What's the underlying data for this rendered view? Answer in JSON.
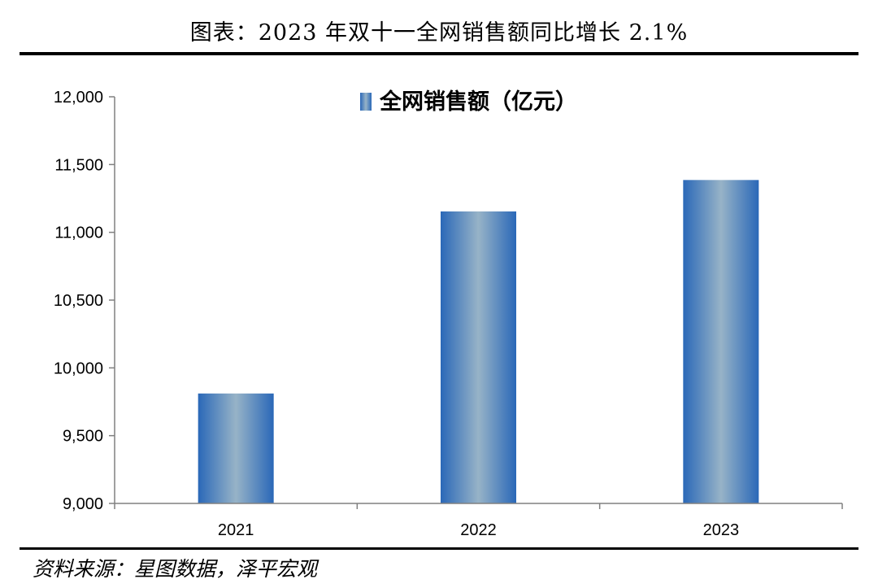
{
  "header": {
    "title": "图表：2023 年双十一全网销售额同比增长 2.1%"
  },
  "footer": {
    "source": "资料来源：星图数据，泽平宏观"
  },
  "colors": {
    "bar_edge": "#2a68b8",
    "bar_center": "#97b3c7",
    "axis": "#808080"
  },
  "chart_data": {
    "type": "bar",
    "categories": [
      "2021",
      "2022",
      "2023"
    ],
    "series": [
      {
        "name": "全网销售额（亿元）",
        "values": [
          9811,
          11154,
          11386
        ]
      }
    ],
    "ylim": [
      9000,
      12000
    ],
    "yticks": [
      9000,
      9500,
      10000,
      10500,
      11000,
      11500,
      12000
    ],
    "ytick_labels": [
      "9,000",
      "9,500",
      "10,000",
      "10,500",
      "11,000",
      "11,500",
      "12,000"
    ],
    "legend": "top-center",
    "grid": false
  }
}
